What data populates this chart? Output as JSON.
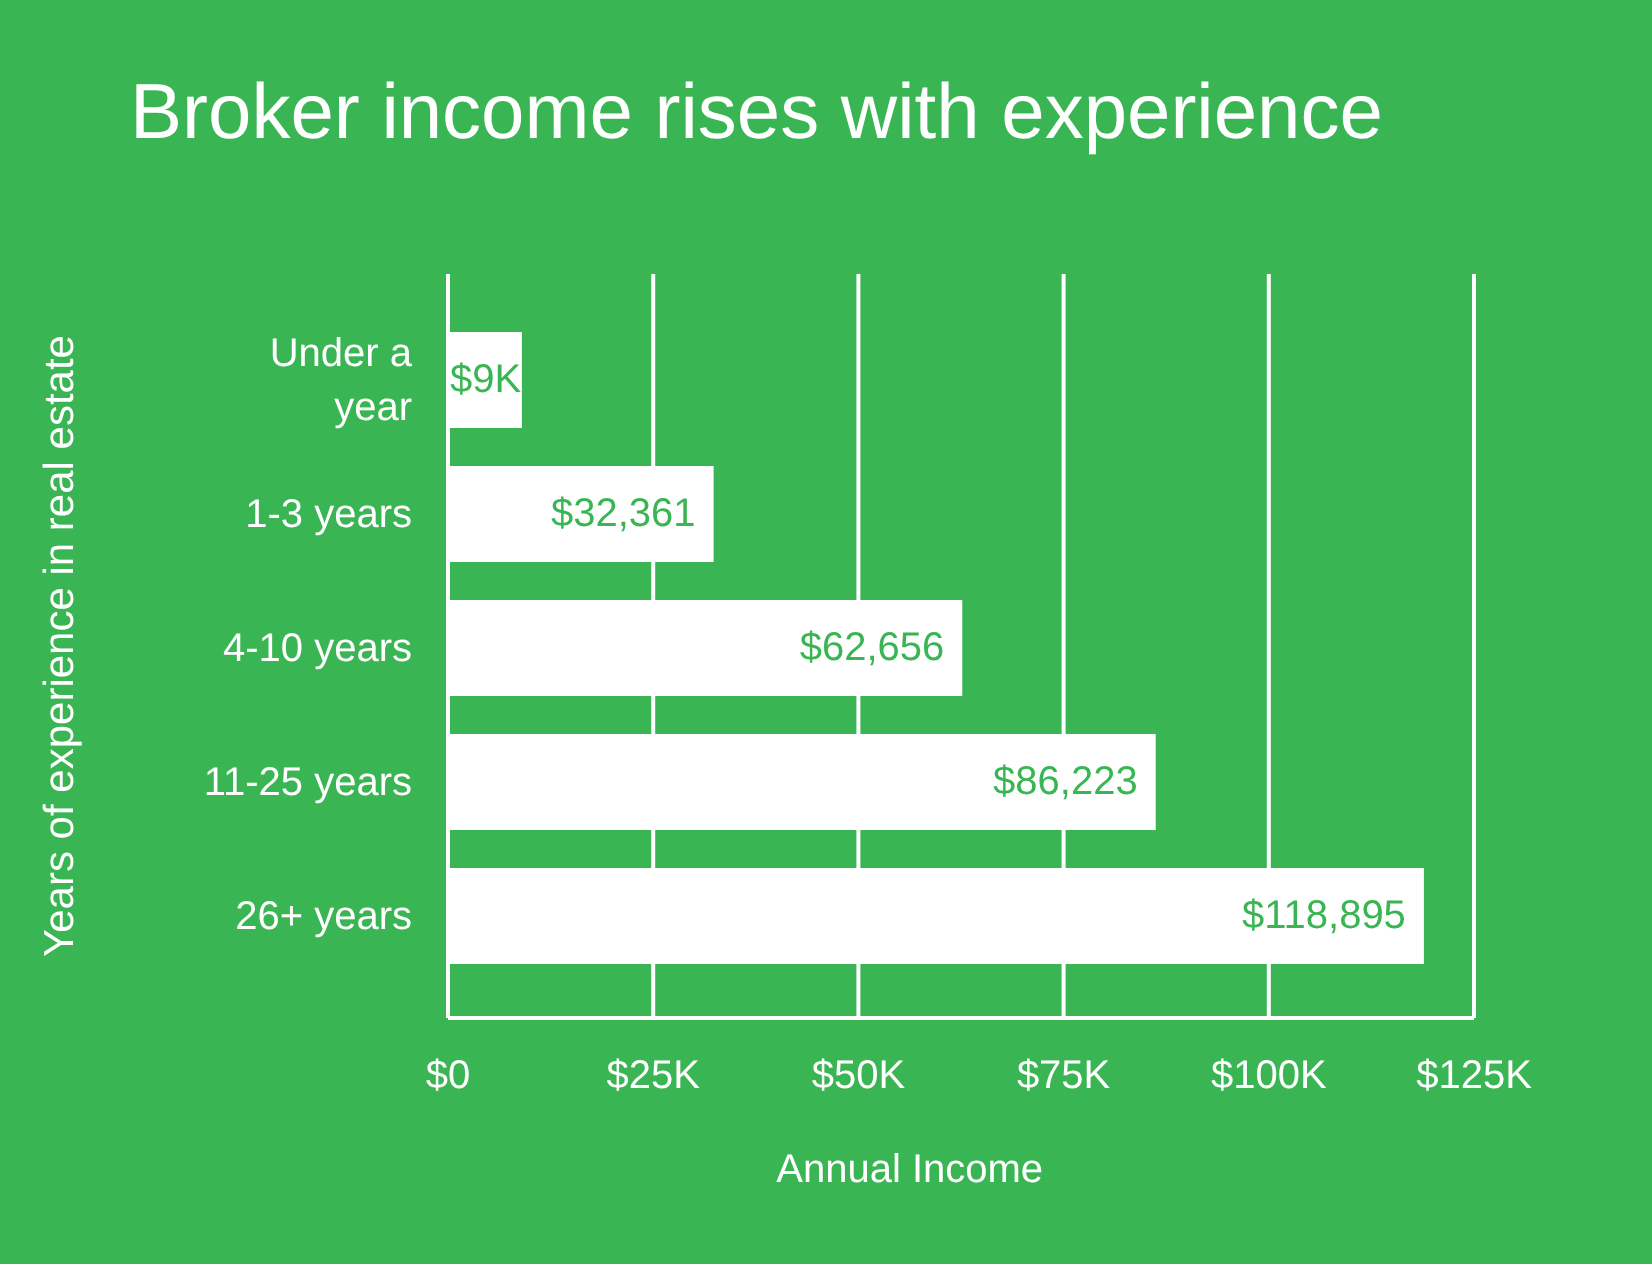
{
  "chart_data": {
    "type": "bar",
    "orientation": "horizontal",
    "title": "Broker income rises with experience",
    "xlabel": "Annual Income",
    "ylabel": "Years of experience in real estate",
    "categories": [
      "Under a year",
      "1-3 years",
      "4-10 years",
      "11-25 years",
      "26+ years"
    ],
    "values": [
      9000,
      32361,
      62656,
      86223,
      118895
    ],
    "color": "#ffffff",
    "value_labels": [
      "$9K",
      "$32,361",
      "$62,656",
      "$86,223",
      "$118,895"
    ],
    "xlim": [
      0,
      125000
    ],
    "xticks": [
      {
        "value": 0,
        "label": "$0"
      },
      {
        "value": 25000,
        "label": "$25K"
      },
      {
        "value": 50000,
        "label": "$50K"
      },
      {
        "value": 75000,
        "label": "$75K"
      },
      {
        "value": 100000,
        "label": "$100K"
      },
      {
        "value": 125000,
        "label": "$125K"
      }
    ],
    "grid": "x"
  }
}
